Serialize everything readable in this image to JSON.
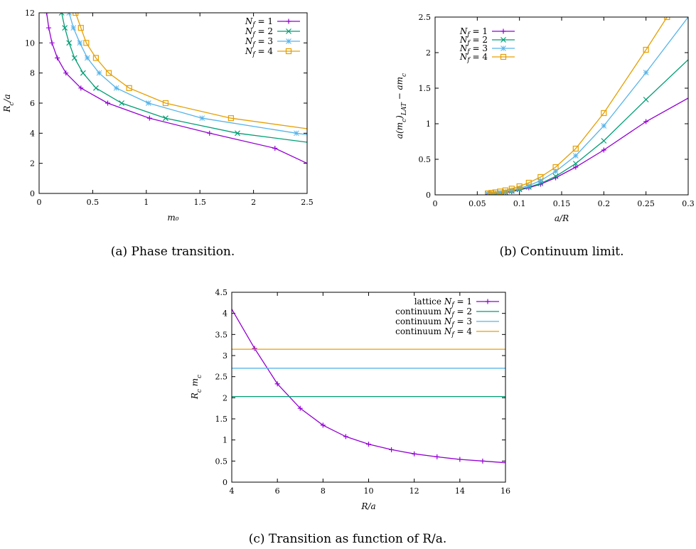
{
  "colors": {
    "Nf1": "#9400d3",
    "Nf2": "#009e73",
    "Nf3": "#56b4e9",
    "Nf4": "#e69f00"
  },
  "chart_data": [
    {
      "id": "a",
      "type": "line",
      "caption": "(a)  Phase transition.",
      "xlabel": "m₀",
      "ylabel": "R_c/a",
      "xlim": [
        0,
        2.5
      ],
      "ylim": [
        0,
        12
      ],
      "xticks": [
        "0",
        "0.5",
        "1",
        "1.5",
        "2",
        "2.5"
      ],
      "yticks": [
        "0",
        "2",
        "4",
        "6",
        "8",
        "10",
        "12"
      ],
      "legend_position": "top-right",
      "series": [
        {
          "name": "N_f = 1",
          "color": "#9400d3",
          "marker": "plus",
          "x": [
            0.07,
            0.09,
            0.12,
            0.17,
            0.25,
            0.39,
            0.64,
            1.03,
            1.59,
            2.2,
            2.5
          ],
          "y": [
            12,
            11,
            10,
            9,
            8,
            7,
            6,
            5,
            4,
            3,
            2
          ]
        },
        {
          "name": "N_f = 2",
          "color": "#009e73",
          "marker": "x",
          "x": [
            0.21,
            0.24,
            0.28,
            0.33,
            0.41,
            0.53,
            0.77,
            1.18,
            1.85,
            2.5
          ],
          "y": [
            12,
            11,
            10,
            9,
            8,
            7,
            6,
            5,
            4,
            3.4
          ]
        },
        {
          "name": "N_f = 3",
          "color": "#56b4e9",
          "marker": "star",
          "x": [
            0.28,
            0.32,
            0.38,
            0.45,
            0.56,
            0.72,
            1.02,
            1.52,
            2.4,
            2.5
          ],
          "y": [
            12,
            11,
            10,
            9,
            8,
            7,
            6,
            5,
            4,
            3.9
          ]
        },
        {
          "name": "N_f = 4",
          "color": "#e69f00",
          "marker": "square",
          "x": [
            0.34,
            0.39,
            0.44,
            0.53,
            0.65,
            0.84,
            1.18,
            1.79,
            2.5
          ],
          "y": [
            12,
            11,
            10,
            9,
            8,
            7,
            6,
            5,
            4.3
          ]
        }
      ]
    },
    {
      "id": "b",
      "type": "line",
      "caption": "(b)  Continuum limit.",
      "xlabel": "a/R",
      "ylabel": "a(m_c)_LAT − am_c",
      "xlim": [
        0,
        0.3
      ],
      "ylim": [
        0,
        2.5
      ],
      "xticks": [
        "0",
        "0.05",
        "0.1",
        "0.15",
        "0.2",
        "0.25",
        "0.3"
      ],
      "yticks": [
        "0",
        "0.5",
        "1",
        "1.5",
        "2",
        "2.5"
      ],
      "legend_position": "top-left",
      "series": [
        {
          "name": "N_f = 1",
          "color": "#9400d3",
          "marker": "plus",
          "x": [
            0.0625,
            0.0667,
            0.0714,
            0.0769,
            0.0833,
            0.0909,
            0.1,
            0.1111,
            0.125,
            0.1429,
            0.1667,
            0.2,
            0.25,
            0.3
          ],
          "y": [
            0.01,
            0.012,
            0.015,
            0.02,
            0.03,
            0.045,
            0.07,
            0.1,
            0.15,
            0.24,
            0.39,
            0.63,
            1.03,
            1.36
          ]
        },
        {
          "name": "N_f = 2",
          "color": "#009e73",
          "marker": "x",
          "x": [
            0.0625,
            0.0667,
            0.0714,
            0.0769,
            0.0833,
            0.0909,
            0.1,
            0.1111,
            0.125,
            0.1429,
            0.1667,
            0.2,
            0.25,
            0.3
          ],
          "y": [
            0.012,
            0.015,
            0.02,
            0.027,
            0.037,
            0.053,
            0.077,
            0.11,
            0.16,
            0.26,
            0.44,
            0.76,
            1.34,
            1.9
          ]
        },
        {
          "name": "N_f = 3",
          "color": "#56b4e9",
          "marker": "star",
          "x": [
            0.0625,
            0.0667,
            0.0714,
            0.0769,
            0.0833,
            0.0909,
            0.1,
            0.1111,
            0.125,
            0.1429,
            0.1667,
            0.2,
            0.25,
            0.3
          ],
          "y": [
            0.015,
            0.02,
            0.026,
            0.035,
            0.048,
            0.067,
            0.095,
            0.13,
            0.2,
            0.33,
            0.55,
            0.97,
            1.72,
            2.5
          ]
        },
        {
          "name": "N_f = 4",
          "color": "#e69f00",
          "marker": "square",
          "x": [
            0.0625,
            0.0667,
            0.0714,
            0.0769,
            0.0833,
            0.0909,
            0.1,
            0.1111,
            0.125,
            0.1429,
            0.1667,
            0.2,
            0.25,
            0.275
          ],
          "y": [
            0.02,
            0.027,
            0.035,
            0.047,
            0.063,
            0.087,
            0.12,
            0.17,
            0.25,
            0.39,
            0.65,
            1.15,
            2.04,
            2.5
          ]
        }
      ]
    },
    {
      "id": "c",
      "type": "line",
      "caption": "(c)  Transition as function of R/a.",
      "xlabel": "R/a",
      "ylabel": "R_c m_c",
      "xlim": [
        4,
        16
      ],
      "ylim": [
        0,
        4.5
      ],
      "xticks": [
        "4",
        "6",
        "8",
        "10",
        "12",
        "14",
        "16"
      ],
      "yticks": [
        "0",
        "0.5",
        "1",
        "1.5",
        "2",
        "2.5",
        "3",
        "3.5",
        "4",
        "4.5"
      ],
      "legend_position": "top-right",
      "series": [
        {
          "name": "lattice N_f = 1",
          "color": "#9400d3",
          "marker": "plus",
          "x": [
            4,
            5,
            6,
            7,
            8,
            9,
            10,
            11,
            12,
            13,
            14,
            15,
            16
          ],
          "y": [
            4.1,
            3.17,
            2.33,
            1.75,
            1.35,
            1.08,
            0.9,
            0.77,
            0.67,
            0.6,
            0.54,
            0.5,
            0.46
          ]
        },
        {
          "name": "continuum N_f = 2",
          "color": "#009e73",
          "marker": "none",
          "x": [
            4,
            16
          ],
          "y": [
            2.03,
            2.03
          ]
        },
        {
          "name": "continuum N_f = 3",
          "color": "#56b4e9",
          "marker": "none",
          "x": [
            4,
            16
          ],
          "y": [
            2.7,
            2.7
          ]
        },
        {
          "name": "continuum N_f = 4",
          "color": "#e69f00",
          "marker": "none",
          "x": [
            4,
            16
          ],
          "y": [
            3.15,
            3.15
          ]
        }
      ]
    }
  ]
}
